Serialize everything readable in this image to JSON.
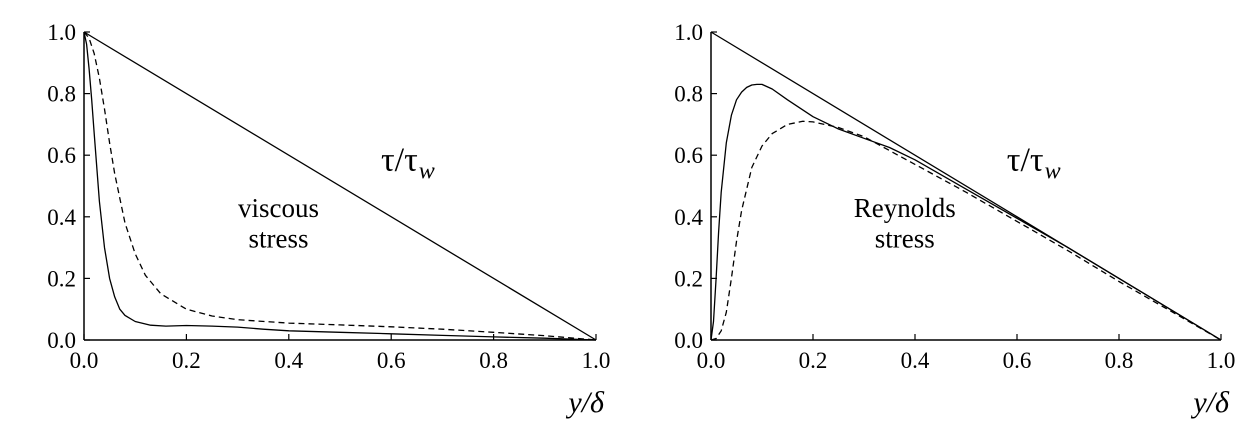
{
  "chart_data": [
    {
      "type": "line",
      "xlabel": "y/δ",
      "ylabel": "",
      "xlim": [
        0,
        1
      ],
      "ylim": [
        0,
        1
      ],
      "xticks": [
        "0.0",
        "0.2",
        "0.4",
        "0.6",
        "0.8",
        "1.0"
      ],
      "yticks": [
        "0.0",
        "0.2",
        "0.4",
        "0.6",
        "0.8",
        "1.0"
      ],
      "grid": false,
      "annotations": [
        {
          "text": "viscous",
          "at": [
            0.38,
            0.4
          ]
        },
        {
          "text": "stress",
          "at": [
            0.38,
            0.3
          ]
        }
      ],
      "total_stress_label": {
        "symbol": "τ/τ",
        "subscript": "w",
        "at": [
          0.58,
          0.55
        ]
      },
      "series": [
        {
          "style": "solid",
          "x": [
            0,
            1
          ],
          "y": [
            1.0,
            0.0
          ]
        },
        {
          "style": "solid",
          "x": [
            0,
            0.005,
            0.01,
            0.015,
            0.02,
            0.03,
            0.04,
            0.05,
            0.06,
            0.07,
            0.08,
            0.1,
            0.13,
            0.16,
            0.2,
            0.25,
            0.3,
            0.35,
            0.4,
            0.5,
            0.6,
            0.7,
            0.8,
            0.9,
            1.0
          ],
          "y": [
            1.0,
            0.96,
            0.88,
            0.78,
            0.67,
            0.45,
            0.3,
            0.2,
            0.14,
            0.1,
            0.08,
            0.06,
            0.048,
            0.045,
            0.047,
            0.045,
            0.042,
            0.035,
            0.03,
            0.025,
            0.02,
            0.015,
            0.01,
            0.006,
            0.0
          ]
        },
        {
          "style": "dashed",
          "x": [
            0,
            0.01,
            0.02,
            0.03,
            0.04,
            0.05,
            0.06,
            0.08,
            0.1,
            0.12,
            0.15,
            0.2,
            0.25,
            0.3,
            0.4,
            0.5,
            0.6,
            0.7,
            0.8,
            0.9,
            1.0
          ],
          "y": [
            1.0,
            0.98,
            0.93,
            0.85,
            0.75,
            0.64,
            0.54,
            0.38,
            0.28,
            0.21,
            0.15,
            0.1,
            0.078,
            0.066,
            0.055,
            0.049,
            0.043,
            0.035,
            0.025,
            0.014,
            0.0
          ]
        }
      ]
    },
    {
      "type": "line",
      "xlabel": "y/δ",
      "ylabel": "",
      "xlim": [
        0,
        1
      ],
      "ylim": [
        0,
        1
      ],
      "xticks": [
        "0.0",
        "0.2",
        "0.4",
        "0.6",
        "0.8",
        "1.0"
      ],
      "yticks": [
        "0.0",
        "0.2",
        "0.4",
        "0.6",
        "0.8",
        "1.0"
      ],
      "grid": false,
      "annotations": [
        {
          "text": "Reynolds",
          "at": [
            0.38,
            0.4
          ]
        },
        {
          "text": "stress",
          "at": [
            0.38,
            0.3
          ]
        }
      ],
      "total_stress_label": {
        "symbol": "τ/τ",
        "subscript": "w",
        "at": [
          0.58,
          0.55
        ]
      },
      "series": [
        {
          "style": "solid",
          "x": [
            0,
            1
          ],
          "y": [
            1.0,
            0.0
          ]
        },
        {
          "style": "solid",
          "x": [
            0,
            0.005,
            0.01,
            0.015,
            0.02,
            0.03,
            0.04,
            0.05,
            0.06,
            0.07,
            0.08,
            0.09,
            0.1,
            0.12,
            0.15,
            0.2,
            0.25,
            0.3,
            0.35,
            0.4,
            0.5,
            0.6,
            0.7,
            0.8,
            0.9,
            1.0
          ],
          "y": [
            0.0,
            0.06,
            0.2,
            0.35,
            0.48,
            0.64,
            0.73,
            0.78,
            0.805,
            0.82,
            0.828,
            0.83,
            0.83,
            0.815,
            0.78,
            0.725,
            0.685,
            0.655,
            0.625,
            0.585,
            0.49,
            0.395,
            0.3,
            0.2,
            0.1,
            0.0
          ]
        },
        {
          "style": "dashed",
          "x": [
            0,
            0.01,
            0.02,
            0.03,
            0.04,
            0.05,
            0.06,
            0.08,
            0.1,
            0.12,
            0.15,
            0.18,
            0.2,
            0.25,
            0.3,
            0.4,
            0.5,
            0.6,
            0.7,
            0.8,
            0.9,
            1.0
          ],
          "y": [
            0.0,
            0.005,
            0.03,
            0.09,
            0.2,
            0.32,
            0.42,
            0.56,
            0.63,
            0.67,
            0.7,
            0.71,
            0.708,
            0.69,
            0.66,
            0.57,
            0.48,
            0.385,
            0.29,
            0.19,
            0.095,
            0.0
          ]
        }
      ]
    }
  ]
}
